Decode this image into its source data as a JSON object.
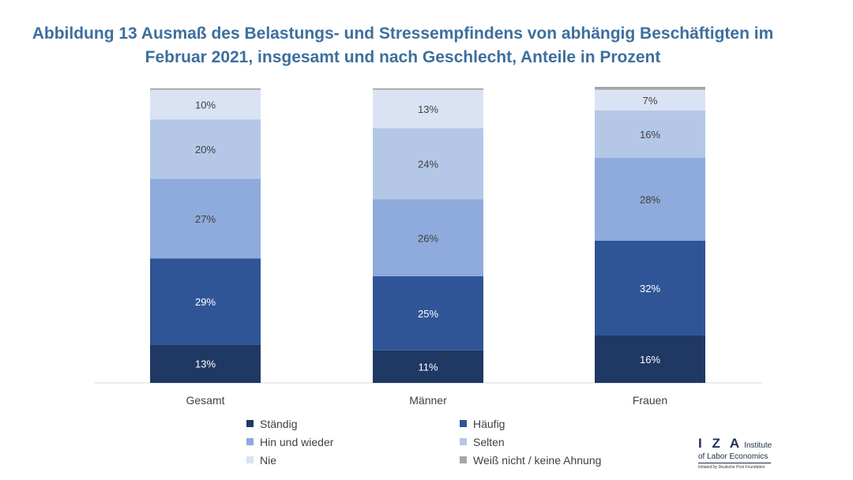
{
  "title": {
    "line1": "Abbildung 13 Ausmaß des Belastungs- und Stressempfindens von abhängig Beschäftigten im",
    "line2": "Februar 2021, insgesamt und nach Geschlecht, Anteile in Prozent"
  },
  "chart_data": {
    "type": "bar",
    "stacked": true,
    "categories": [
      "Gesamt",
      "Männer",
      "Frauen"
    ],
    "series": [
      {
        "name": "Ständig",
        "color": "#1f3864",
        "values": [
          13,
          11,
          16
        ],
        "labels": [
          "13%",
          "11%",
          "16%"
        ]
      },
      {
        "name": "Häufig",
        "color": "#2f5597",
        "values": [
          29,
          25,
          32
        ],
        "labels": [
          "29%",
          "25%",
          "32%"
        ]
      },
      {
        "name": "Hin und wieder",
        "color": "#8faadc",
        "values": [
          27,
          26,
          28
        ],
        "labels": [
          "27%",
          "26%",
          "28%"
        ]
      },
      {
        "name": "Selten",
        "color": "#b4c7e7",
        "values": [
          20,
          24,
          16
        ],
        "labels": [
          "20%",
          "24%",
          "16%"
        ]
      },
      {
        "name": "Nie",
        "color": "#dae3f3",
        "values": [
          10,
          13,
          7
        ],
        "labels": [
          "10%",
          "13%",
          "7%"
        ]
      },
      {
        "name": "Weiß nicht / keine Ahnung",
        "color": "#a6a6a6",
        "values": [
          0.5,
          0.5,
          1
        ],
        "labels": [
          "",
          "",
          ""
        ]
      }
    ],
    "ylim": [
      0,
      100
    ],
    "legend_position": "bottom",
    "grid": false
  },
  "logo": {
    "letters": "I Z A",
    "line1": "Institute",
    "line2": "of Labor Economics",
    "line3": "Initiated by Deutsche Post Foundation"
  }
}
